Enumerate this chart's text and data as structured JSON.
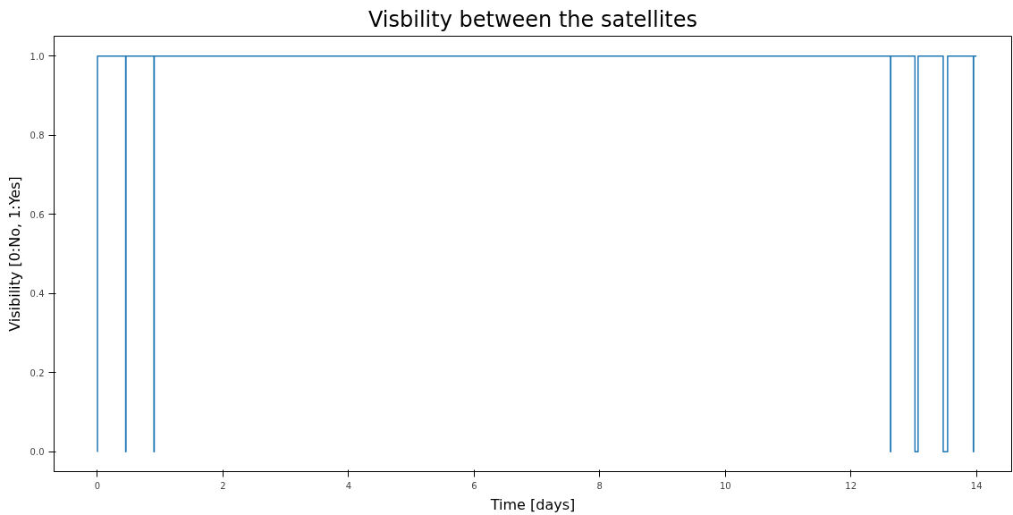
{
  "chart_data": {
    "type": "step",
    "title": "Visbility between the satellites",
    "xlabel": "Time [days]",
    "ylabel": "Visibility [0:No, 1:Yes]",
    "x": [
      0,
      0.001,
      0.45,
      0.455,
      0.9,
      0.905,
      12.63,
      12.635,
      13.02,
      13.07,
      13.47,
      13.54,
      13.95,
      13.955,
      14.0
    ],
    "series": [
      {
        "color": "#1f77b4",
        "values": [
          0,
          1,
          0,
          1,
          0,
          1,
          0,
          1,
          0,
          1,
          0,
          1,
          0,
          1,
          1
        ]
      }
    ],
    "xlim": [
      -0.69,
      14.56
    ],
    "ylim": [
      -0.05,
      1.05
    ],
    "xticks": [
      0,
      2,
      4,
      6,
      8,
      10,
      12,
      14
    ],
    "yticks": [
      {
        "value": 0,
        "label": "0.0"
      },
      {
        "value": 0.2,
        "label": "0.2"
      },
      {
        "value": 0.4,
        "label": "0.4"
      },
      {
        "value": 0.6,
        "label": "0.6"
      },
      {
        "value": 0.8,
        "label": "0.8"
      },
      {
        "value": 1,
        "label": "1.0"
      }
    ],
    "grid": false
  }
}
